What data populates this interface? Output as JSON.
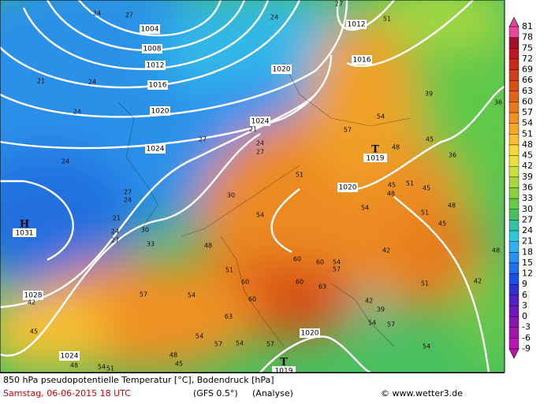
{
  "map": {
    "isobar_labels": [
      "1004",
      "1008",
      "1012",
      "1016",
      "1020",
      "1024",
      "1020",
      "1024",
      "1012",
      "1016",
      "1020",
      "1028",
      "1024",
      "1020"
    ],
    "pressure_centers": [
      {
        "symbol": "H",
        "value": "1031"
      },
      {
        "symbol": "T",
        "value": "1019"
      },
      {
        "symbol": "T",
        "value": "1019"
      }
    ],
    "temperature_labels": [
      "24",
      "27",
      "24",
      "27",
      "51",
      "21",
      "24",
      "24",
      "21",
      "24",
      "27",
      "27",
      "57",
      "54",
      "48",
      "39",
      "36",
      "36",
      "45",
      "24",
      "27",
      "24",
      "30",
      "21",
      "24",
      "27",
      "30",
      "33",
      "51",
      "54",
      "45",
      "48",
      "51",
      "45",
      "54",
      "51",
      "48",
      "45",
      "42",
      "48",
      "51",
      "60",
      "60",
      "54",
      "57",
      "60",
      "60",
      "63",
      "60",
      "57",
      "54",
      "42",
      "45",
      "63",
      "42",
      "39",
      "54",
      "57",
      "51",
      "48",
      "42",
      "54",
      "57",
      "54",
      "57",
      "48",
      "45",
      "54",
      "48",
      "51",
      "54"
    ]
  },
  "colorbar": {
    "labels": [
      "81",
      "78",
      "75",
      "72",
      "69",
      "66",
      "63",
      "60",
      "57",
      "54",
      "51",
      "48",
      "45",
      "42",
      "39",
      "36",
      "33",
      "30",
      "27",
      "24",
      "21",
      "18",
      "15",
      "12",
      "9",
      "6",
      "3",
      "0",
      "-3",
      "-6",
      "-9"
    ],
    "colors": [
      "#e8489a",
      "#a0102a",
      "#b81a22",
      "#c82a1a",
      "#d0401a",
      "#d85018",
      "#e06418",
      "#e87a1c",
      "#f09022",
      "#f4a828",
      "#f8c030",
      "#f8d838",
      "#e8e040",
      "#c8e040",
      "#a8d840",
      "#88d040",
      "#68c848",
      "#48c060",
      "#38c0a0",
      "#30c8d8",
      "#30b0f0",
      "#2890f0",
      "#2070e8",
      "#1850e0",
      "#3030d0",
      "#5020c0",
      "#7018b8",
      "#8818b0",
      "#a018a8",
      "#b818b0"
    ]
  },
  "footer": {
    "title": "850 hPa pseudopotentielle Temperatur [°C], Bodendruck [hPa]",
    "date": "Samstag, 06-06-2015   18 UTC",
    "model": "(GFS 0.5°)",
    "run": "(Analyse)",
    "credit": "© www.wetter3.de"
  }
}
